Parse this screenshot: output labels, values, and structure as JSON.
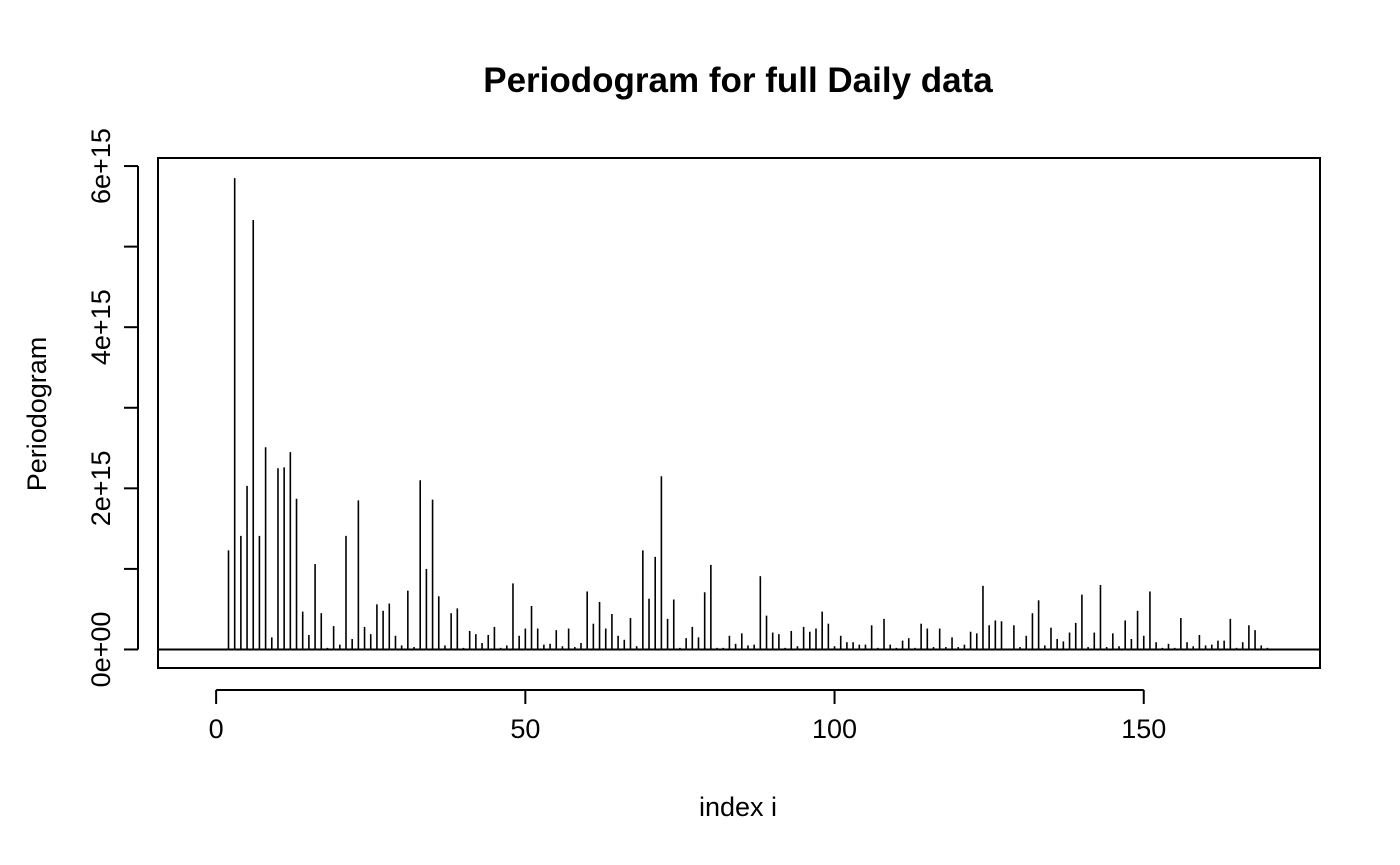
{
  "chart_data": {
    "type": "bar",
    "title": "Periodogram for full Daily data",
    "xlabel": "index i",
    "ylabel": "Periodogram",
    "xlim": [
      -9.4,
      178.5
    ],
    "ylim": [
      -230000000000000.0,
      6100000000000000.0
    ],
    "xticks": [
      0,
      50,
      100,
      150
    ],
    "xtick_labels": [
      "0",
      "50",
      "100",
      "150"
    ],
    "yticks": [
      0,
      1000000000000000.0,
      2000000000000000.0,
      3000000000000000.0,
      4000000000000000.0,
      5000000000000000.0,
      6000000000000000.0
    ],
    "ytick_labels": [
      "0e+00",
      "",
      "2e+15",
      "",
      "4e+15",
      "",
      "6e+15"
    ],
    "grid": false,
    "reference_line": 0,
    "x": [
      2,
      3,
      4,
      5,
      6,
      7,
      8,
      9,
      10,
      11,
      12,
      13,
      14,
      15,
      16,
      17,
      18,
      19,
      20,
      21,
      22,
      23,
      24,
      25,
      26,
      27,
      28,
      29,
      30,
      31,
      32,
      33,
      34,
      35,
      36,
      37,
      38,
      39,
      40,
      41,
      42,
      43,
      44,
      45,
      46,
      47,
      48,
      49,
      50,
      51,
      52,
      53,
      54,
      55,
      56,
      57,
      58,
      59,
      60,
      61,
      62,
      63,
      64,
      65,
      66,
      67,
      68,
      69,
      70,
      71,
      72,
      73,
      74,
      75,
      76,
      77,
      78,
      79,
      80,
      81,
      82,
      83,
      84,
      85,
      86,
      87,
      88,
      89,
      90,
      91,
      92,
      93,
      94,
      95,
      96,
      97,
      98,
      99,
      100,
      101,
      102,
      103,
      104,
      105,
      106,
      107,
      108,
      109,
      110,
      111,
      112,
      113,
      114,
      115,
      116,
      117,
      118,
      119,
      120,
      121,
      122,
      123,
      124,
      125,
      126,
      127,
      128,
      129,
      130,
      131,
      132,
      133,
      134,
      135,
      136,
      137,
      138,
      139,
      140,
      141,
      142,
      143,
      144,
      145,
      146,
      147,
      148,
      149,
      150,
      151,
      152,
      153,
      154,
      155,
      156,
      157,
      158,
      159,
      160,
      161,
      162,
      163,
      164,
      165,
      166,
      167,
      168,
      169,
      170
    ],
    "values": [
      1230000000000000.0,
      5850000000000000.0,
      1410000000000000.0,
      2030000000000000.0,
      5330000000000000.0,
      1410000000000000.0,
      2510000000000000.0,
      150000000000000.0,
      2250000000000000.0,
      2260000000000000.0,
      2450000000000000.0,
      1870000000000000.0,
      470000000000000.0,
      180000000000000.0,
      1060000000000000.0,
      450000000000000.0,
      20000000000000.0,
      290000000000000.0,
      60000000000000.0,
      1410000000000000.0,
      130000000000000.0,
      1850000000000000.0,
      280000000000000.0,
      190000000000000.0,
      560000000000000.0,
      480000000000000.0,
      570000000000000.0,
      170000000000000.0,
      50000000000000.0,
      730000000000000.0,
      30000000000000.0,
      2100000000000000.0,
      1000000000000000.0,
      1860000000000000.0,
      660000000000000.0,
      50000000000000.0,
      450000000000000.0,
      510000000000000.0,
      20000000000000.0,
      230000000000000.0,
      190000000000000.0,
      80000000000000.0,
      180000000000000.0,
      280000000000000.0,
      20000000000000.0,
      50000000000000.0,
      820000000000000.0,
      170000000000000.0,
      260000000000000.0,
      540000000000000.0,
      260000000000000.0,
      60000000000000.0,
      70000000000000.0,
      240000000000000.0,
      40000000000000.0,
      260000000000000.0,
      30000000000000.0,
      80000000000000.0,
      720000000000000.0,
      320000000000000.0,
      590000000000000.0,
      260000000000000.0,
      440000000000000.0,
      170000000000000.0,
      120000000000000.0,
      390000000000000.0,
      40000000000000.0,
      1230000000000000.0,
      630000000000000.0,
      1150000000000000.0,
      2150000000000000.0,
      380000000000000.0,
      620000000000000.0,
      20000000000000.0,
      140000000000000.0,
      280000000000000.0,
      150000000000000.0,
      710000000000000.0,
      1050000000000000.0,
      20000000000000.0,
      20000000000000.0,
      170000000000000.0,
      70000000000000.0,
      200000000000000.0,
      50000000000000.0,
      60000000000000.0,
      910000000000000.0,
      420000000000000.0,
      210000000000000.0,
      190000000000000.0,
      20000000000000.0,
      230000000000000.0,
      40000000000000.0,
      280000000000000.0,
      220000000000000.0,
      260000000000000.0,
      470000000000000.0,
      320000000000000.0,
      40000000000000.0,
      170000000000000.0,
      90000000000000.0,
      90000000000000.0,
      60000000000000.0,
      60000000000000.0,
      300000000000000.0,
      20000000000000.0,
      380000000000000.0,
      60000000000000.0,
      20000000000000.0,
      110000000000000.0,
      140000000000000.0,
      20000000000000.0,
      320000000000000.0,
      260000000000000.0,
      30000000000000.0,
      260000000000000.0,
      30000000000000.0,
      150000000000000.0,
      30000000000000.0,
      60000000000000.0,
      220000000000000.0,
      200000000000000.0,
      790000000000000.0,
      300000000000000.0,
      360000000000000.0,
      350000000000000.0,
      10000000000000.0,
      300000000000000.0,
      30000000000000.0,
      170000000000000.0,
      450000000000000.0,
      610000000000000.0,
      50000000000000.0,
      270000000000000.0,
      130000000000000.0,
      100000000000000.0,
      210000000000000.0,
      330000000000000.0,
      680000000000000.0,
      30000000000000.0,
      210000000000000.0,
      800000000000000.0,
      30000000000000.0,
      200000000000000.0,
      40000000000000.0,
      360000000000000.0,
      130000000000000.0,
      480000000000000.0,
      170000000000000.0,
      720000000000000.0,
      90000000000000.0,
      20000000000000.0,
      70000000000000.0,
      20000000000000.0,
      390000000000000.0,
      90000000000000.0,
      40000000000000.0,
      180000000000000.0,
      50000000000000.0,
      60000000000000.0,
      110000000000000.0,
      110000000000000.0,
      380000000000000.0,
      20000000000000.0,
      90000000000000.0,
      300000000000000.0,
      240000000000000.0,
      50000000000000.0,
      20000000000000.0
    ]
  }
}
